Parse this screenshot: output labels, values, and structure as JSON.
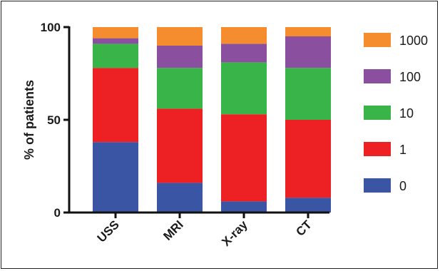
{
  "chart_data": {
    "type": "bar",
    "stacked": true,
    "categories": [
      "USS",
      "MRI",
      "X-ray",
      "CT"
    ],
    "ylabel": "% of patients",
    "xlabel": "",
    "ylim": [
      0,
      100
    ],
    "yticks": [
      0,
      50,
      100
    ],
    "legend_position": "right",
    "series": [
      {
        "name": "0",
        "color": "#3a55a4",
        "values": [
          38,
          16,
          6,
          8
        ]
      },
      {
        "name": "1",
        "color": "#ed2024",
        "values": [
          40,
          40,
          47,
          42
        ]
      },
      {
        "name": "10",
        "color": "#39b449",
        "values": [
          13,
          22,
          28,
          28
        ]
      },
      {
        "name": "100",
        "color": "#8b4f9f",
        "values": [
          3,
          12,
          10,
          17
        ]
      },
      {
        "name": "1000",
        "color": "#f58d2e",
        "values": [
          6,
          10,
          9,
          5
        ]
      }
    ]
  }
}
